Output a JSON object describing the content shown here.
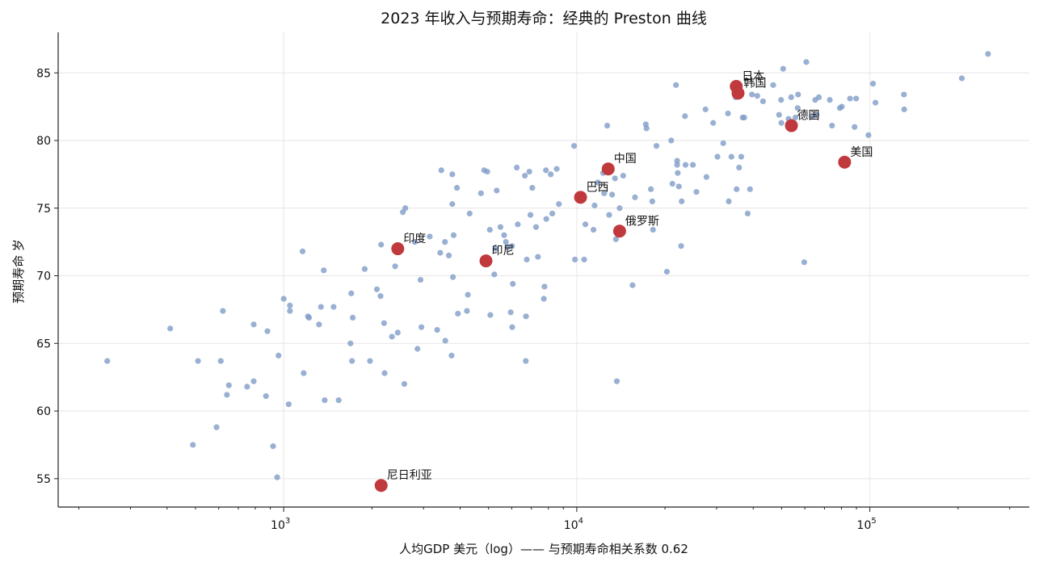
{
  "chart_data": {
    "type": "scatter",
    "title": "2023 年收入与预期寿命：经典的 Preston 曲线",
    "xlabel": "人均GDP 美元（log）—— 与预期寿命相关系数 0.62",
    "ylabel": "预期寿命 岁",
    "x_scale": "log",
    "xlim": [
      170,
      350000
    ],
    "ylim": [
      52.9,
      88.0
    ],
    "x_ticks": [
      1000,
      10000,
      100000
    ],
    "x_tick_labels": [
      "10^3",
      "10^4",
      "10^5"
    ],
    "y_ticks": [
      55,
      60,
      65,
      70,
      75,
      80,
      85
    ],
    "y_tick_labels": [
      "55",
      "60",
      "65",
      "70",
      "75",
      "80",
      "85"
    ],
    "grid": true,
    "colors": {
      "countries": "#7f9cc8",
      "highlight": "#c0393d"
    },
    "series": [
      {
        "points": [
          [
            250,
            63.7
          ],
          [
            410,
            66.1
          ],
          [
            490,
            57.5
          ],
          [
            510,
            63.7
          ],
          [
            590,
            58.8
          ],
          [
            610,
            63.7
          ],
          [
            620,
            67.4
          ],
          [
            640,
            61.2
          ],
          [
            650,
            61.9
          ],
          [
            750,
            61.8
          ],
          [
            790,
            62.2
          ],
          [
            790,
            66.4
          ],
          [
            870,
            61.1
          ],
          [
            880,
            65.9
          ],
          [
            920,
            57.4
          ],
          [
            950,
            55.1
          ],
          [
            960,
            64.1
          ],
          [
            1000,
            68.3
          ],
          [
            1040,
            60.5
          ],
          [
            1050,
            67.8
          ],
          [
            1050,
            67.4
          ],
          [
            1160,
            71.8
          ],
          [
            1170,
            62.8
          ],
          [
            1210,
            67.0
          ],
          [
            1220,
            66.9
          ],
          [
            1320,
            66.4
          ],
          [
            1340,
            67.7
          ],
          [
            1370,
            70.4
          ],
          [
            1380,
            60.8
          ],
          [
            1480,
            67.7
          ],
          [
            1540,
            60.8
          ],
          [
            1690,
            65.0
          ],
          [
            1700,
            68.7
          ],
          [
            1710,
            63.7
          ],
          [
            1720,
            66.9
          ],
          [
            1890,
            70.5
          ],
          [
            1970,
            63.7
          ],
          [
            2080,
            69.0
          ],
          [
            2140,
            68.5
          ],
          [
            2150,
            72.3
          ],
          [
            2200,
            66.5
          ],
          [
            2210,
            62.8
          ],
          [
            2340,
            65.5
          ],
          [
            2400,
            70.7
          ],
          [
            2450,
            65.8
          ],
          [
            2550,
            74.7
          ],
          [
            2580,
            62.0
          ],
          [
            2600,
            75.0
          ],
          [
            2800,
            72.5
          ],
          [
            2860,
            64.6
          ],
          [
            2930,
            69.7
          ],
          [
            2950,
            66.2
          ],
          [
            3150,
            72.9
          ],
          [
            3340,
            66.0
          ],
          [
            3420,
            71.7
          ],
          [
            3450,
            77.8
          ],
          [
            3550,
            72.5
          ],
          [
            3560,
            65.2
          ],
          [
            3660,
            71.5
          ],
          [
            3740,
            64.1
          ],
          [
            3760,
            77.5
          ],
          [
            3760,
            75.3
          ],
          [
            3780,
            69.9
          ],
          [
            3800,
            73.0
          ],
          [
            3900,
            76.5
          ],
          [
            3930,
            67.2
          ],
          [
            4220,
            67.4
          ],
          [
            4250,
            68.6
          ],
          [
            4310,
            74.6
          ],
          [
            4710,
            76.1
          ],
          [
            4830,
            77.8
          ],
          [
            4950,
            77.7
          ],
          [
            5050,
            73.4
          ],
          [
            5070,
            67.1
          ],
          [
            5230,
            70.1
          ],
          [
            5280,
            72.0
          ],
          [
            5330,
            76.3
          ],
          [
            5490,
            73.6
          ],
          [
            5650,
            73.0
          ],
          [
            5730,
            72.5
          ],
          [
            5810,
            72.1
          ],
          [
            5950,
            67.3
          ],
          [
            6010,
            72.2
          ],
          [
            6020,
            66.2
          ],
          [
            6050,
            69.4
          ],
          [
            6240,
            78.0
          ],
          [
            6290,
            73.8
          ],
          [
            6650,
            77.4
          ],
          [
            6700,
            63.7
          ],
          [
            6710,
            67.0
          ],
          [
            6750,
            71.2
          ],
          [
            6890,
            77.7
          ],
          [
            6950,
            74.5
          ],
          [
            7050,
            76.5
          ],
          [
            7260,
            73.6
          ],
          [
            7370,
            71.4
          ],
          [
            7720,
            68.3
          ],
          [
            7760,
            69.2
          ],
          [
            7850,
            77.8
          ],
          [
            7870,
            74.2
          ],
          [
            8150,
            77.5
          ],
          [
            8250,
            74.6
          ],
          [
            8540,
            77.9
          ],
          [
            8690,
            75.3
          ],
          [
            9790,
            79.6
          ],
          [
            9860,
            71.2
          ],
          [
            10600,
            71.2
          ],
          [
            10700,
            73.8
          ],
          [
            11400,
            73.4
          ],
          [
            11500,
            75.2
          ],
          [
            11800,
            76.9
          ],
          [
            12300,
            77.6
          ],
          [
            12400,
            76.1
          ],
          [
            12700,
            81.1
          ],
          [
            12900,
            74.5
          ],
          [
            13200,
            76.0
          ],
          [
            13500,
            77.2
          ],
          [
            13600,
            72.7
          ],
          [
            13700,
            62.2
          ],
          [
            14000,
            75.0
          ],
          [
            14400,
            77.4
          ],
          [
            15500,
            69.3
          ],
          [
            15800,
            75.8
          ],
          [
            17200,
            81.2
          ],
          [
            17300,
            80.9
          ],
          [
            17900,
            76.4
          ],
          [
            18100,
            75.5
          ],
          [
            18200,
            73.4
          ],
          [
            18700,
            79.6
          ],
          [
            20300,
            70.3
          ],
          [
            21000,
            80.0
          ],
          [
            21200,
            76.8
          ],
          [
            21800,
            84.1
          ],
          [
            22000,
            78.5
          ],
          [
            22000,
            78.2
          ],
          [
            22100,
            77.6
          ],
          [
            22300,
            76.6
          ],
          [
            22700,
            72.2
          ],
          [
            22800,
            75.5
          ],
          [
            23400,
            81.8
          ],
          [
            23500,
            78.2
          ],
          [
            24900,
            78.2
          ],
          [
            25600,
            76.2
          ],
          [
            27500,
            82.3
          ],
          [
            27700,
            77.3
          ],
          [
            29200,
            81.3
          ],
          [
            30200,
            78.8
          ],
          [
            31600,
            79.8
          ],
          [
            32800,
            82.0
          ],
          [
            33000,
            75.5
          ],
          [
            33700,
            78.8
          ],
          [
            34100,
            84.0
          ],
          [
            34800,
            83.2
          ],
          [
            35100,
            76.4
          ],
          [
            35800,
            78.0
          ],
          [
            36400,
            78.8
          ],
          [
            36800,
            81.7
          ],
          [
            37300,
            81.7
          ],
          [
            38300,
            74.6
          ],
          [
            39000,
            76.4
          ],
          [
            39600,
            83.4
          ],
          [
            41300,
            83.3
          ],
          [
            43200,
            82.9
          ],
          [
            46800,
            84.1
          ],
          [
            49000,
            81.9
          ],
          [
            49800,
            83.0
          ],
          [
            49900,
            81.3
          ],
          [
            50600,
            85.3
          ],
          [
            52800,
            81.6
          ],
          [
            53900,
            83.2
          ],
          [
            55700,
            81.7
          ],
          [
            56700,
            82.4
          ],
          [
            56900,
            83.4
          ],
          [
            59700,
            71.0
          ],
          [
            60700,
            85.8
          ],
          [
            63400,
            81.8
          ],
          [
            65100,
            83.0
          ],
          [
            65800,
            81.9
          ],
          [
            67000,
            83.2
          ],
          [
            73000,
            83.0
          ],
          [
            74300,
            81.1
          ],
          [
            79000,
            82.4
          ],
          [
            80200,
            82.5
          ],
          [
            85600,
            83.1
          ],
          [
            88700,
            81.0
          ],
          [
            89800,
            83.1
          ],
          [
            98900,
            80.4
          ],
          [
            102500,
            84.2
          ],
          [
            104500,
            82.8
          ],
          [
            130700,
            83.4
          ],
          [
            131000,
            82.3
          ],
          [
            206000,
            84.6
          ],
          [
            253000,
            86.4
          ]
        ]
      },
      {
        "points": [
          {
            "label": "日本",
            "x": 35000,
            "y": 84.0
          },
          {
            "label": "韩国",
            "x": 35500,
            "y": 83.5
          },
          {
            "label": "德国",
            "x": 54000,
            "y": 81.1
          },
          {
            "label": "美国",
            "x": 82000,
            "y": 78.4
          },
          {
            "label": "中国",
            "x": 12800,
            "y": 77.9
          },
          {
            "label": "巴西",
            "x": 10300,
            "y": 75.8
          },
          {
            "label": "俄罗斯",
            "x": 14000,
            "y": 73.3
          },
          {
            "label": "印度",
            "x": 2450,
            "y": 72.0
          },
          {
            "label": "印尼",
            "x": 4900,
            "y": 71.1
          },
          {
            "label": "尼日利亚",
            "x": 2150,
            "y": 54.5
          }
        ]
      }
    ]
  }
}
